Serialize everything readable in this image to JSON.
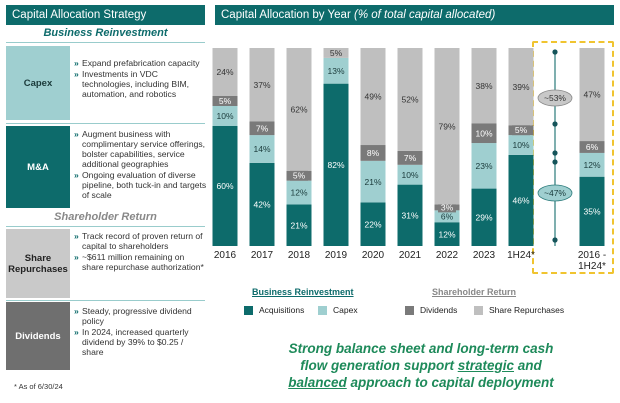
{
  "left_panel": {
    "header": "Capital Allocation Strategy",
    "business_reinvestment_title": "Business Reinvestment",
    "shareholder_return_title": "Shareholder Return",
    "rows": [
      {
        "label": "Capex",
        "bullets": [
          "Expand prefabrication capacity",
          "Investments in VDC technologies, including BIM, automation, and robotics"
        ]
      },
      {
        "label": "M&A",
        "bullets": [
          "Augment business with complimentary service offerings, bolster capabilities, service additional geographies",
          "Ongoing evaluation of diverse pipeline, both tuck-in and targets of scale"
        ]
      },
      {
        "label": "Share Repurchases",
        "bullets": [
          "Track record of proven return of capital to shareholders",
          "~$611 million remaining on share repurchase authorization*"
        ]
      },
      {
        "label": "Dividends",
        "bullets": [
          "Steady, progressive dividend policy",
          "In 2024, increased quarterly dividend by 39% to $0.25 / share"
        ]
      }
    ]
  },
  "right_panel": {
    "header_main": "Capital Allocation by Year",
    "header_sub": "(% of total capital allocated)"
  },
  "legend": {
    "reinvest_title": "Business Reinvestment",
    "share_title": "Shareholder Return",
    "items": [
      "Acquisitions",
      "Capex",
      "Dividends",
      "Share Repurchases"
    ]
  },
  "colors": {
    "acquisitions": "#0d6b6b",
    "capex": "#9fcfd0",
    "dividends": "#7a7a7a",
    "share_repurchases": "#bfbfbf",
    "header": "#0d6b6b"
  },
  "tagline": {
    "line1": "Strong balance sheet and long-term cash",
    "line2_pre": "flow generation support ",
    "line2_u": "strategic",
    "line2_post": " and",
    "line3_u": "balanced",
    "line3_post": " approach to capital deployment"
  },
  "footnote": "* As of 6/30/24",
  "chart_data": {
    "type": "bar",
    "stacked": true,
    "normalized_percent": true,
    "categories": [
      "2016",
      "2017",
      "2018",
      "2019",
      "2020",
      "2021",
      "2022",
      "2023",
      "1H24*",
      "2016 -\n1H24*"
    ],
    "series": [
      {
        "name": "Acquisitions",
        "values": [
          60,
          42,
          21,
          82,
          22,
          31,
          12,
          29,
          46,
          35
        ]
      },
      {
        "name": "Capex",
        "values": [
          10,
          14,
          12,
          13,
          21,
          10,
          6,
          23,
          10,
          12
        ]
      },
      {
        "name": "Dividends",
        "values": [
          5,
          7,
          5,
          0,
          8,
          7,
          3,
          10,
          5,
          6
        ]
      },
      {
        "name": "Share Repurchases",
        "values": [
          24,
          37,
          62,
          5,
          49,
          52,
          79,
          38,
          39,
          47
        ]
      }
    ],
    "labels": [
      [
        "60%",
        "10%",
        "5%",
        "24%"
      ],
      [
        "42%",
        "14%",
        "7%",
        "37%"
      ],
      [
        "21%",
        "12%",
        "5%",
        "62%"
      ],
      [
        "82%",
        "13%",
        null,
        "5%"
      ],
      [
        "22%",
        "21%",
        "8%",
        "49%"
      ],
      [
        "31%",
        "10%",
        "7%",
        "52%"
      ],
      [
        "12%",
        "6%",
        "3%",
        "79%"
      ],
      [
        "29%",
        "23%",
        "10%",
        "38%"
      ],
      [
        "46%",
        "10%",
        "5%",
        "39%"
      ],
      [
        "35%",
        "12%",
        "6%",
        "47%"
      ]
    ],
    "annotations": {
      "reinvestment_share": "~47%",
      "shareholder_share": "~53%"
    },
    "ylim": [
      0,
      100
    ],
    "title": "Capital Allocation by Year"
  }
}
